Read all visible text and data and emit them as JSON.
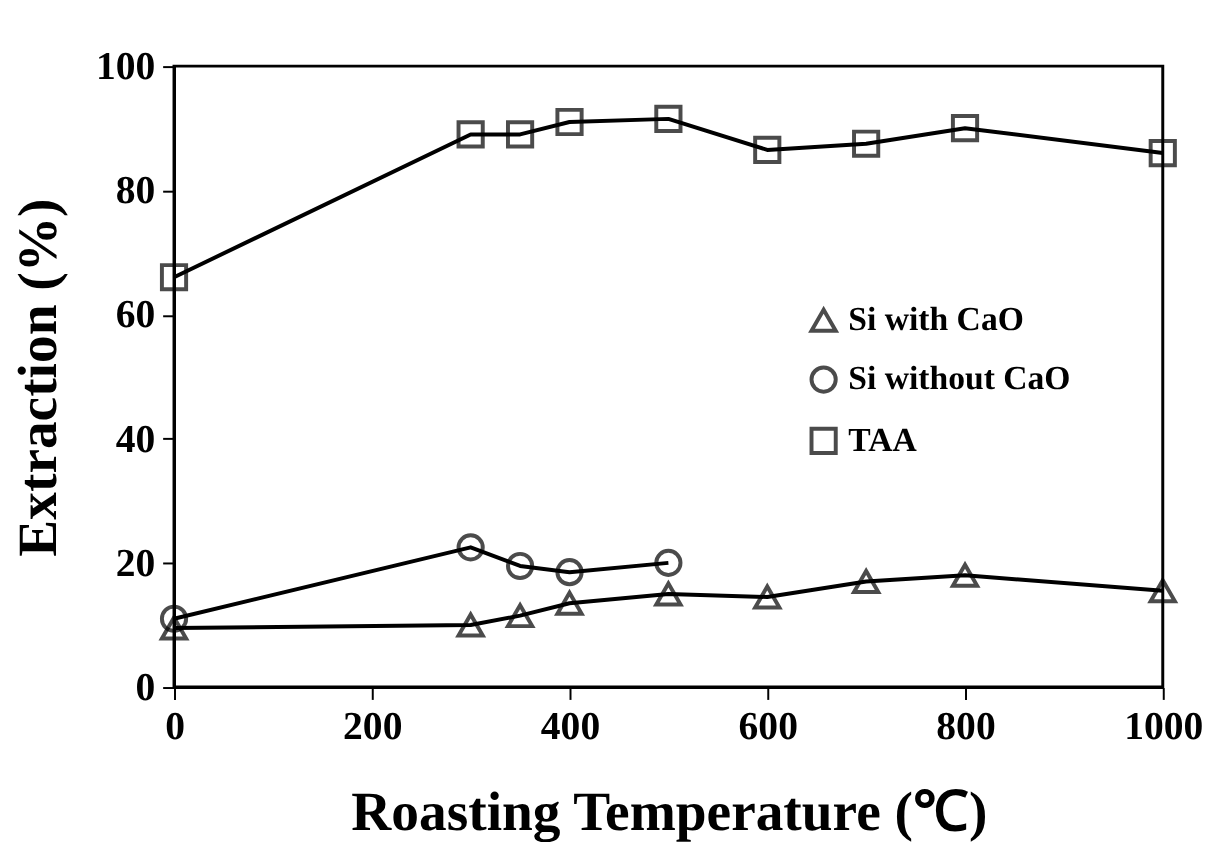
{
  "chart_data": {
    "type": "line",
    "xlabel": "Roasting Temperature (℃)",
    "ylabel": "Extraction (%)",
    "xlim": [
      0,
      1000
    ],
    "xticks": [
      0,
      200,
      400,
      600,
      800,
      1000
    ],
    "ylim": [
      0,
      100
    ],
    "yticks": [
      0,
      20,
      40,
      60,
      80,
      100
    ],
    "grid": false,
    "legend": "right",
    "line_style": "solid",
    "series": [
      {
        "name": "Si with CaO",
        "color": "#000000",
        "marker": "triangle",
        "x": [
          0,
          300,
          350,
          400,
          500,
          600,
          700,
          800,
          1000
        ],
        "values": [
          9.5,
          10,
          11.5,
          13.5,
          15,
          14.5,
          17,
          18,
          15.5
        ]
      },
      {
        "name": "Si without CaO",
        "color": "#000000",
        "marker": "circle",
        "x": [
          0,
          300,
          350,
          400,
          500
        ],
        "values": [
          11,
          22.5,
          19.5,
          18.5,
          20
        ]
      },
      {
        "name": "TAA",
        "color": "#000000",
        "marker": "square",
        "x": [
          0,
          300,
          350,
          400,
          500,
          600,
          700,
          800,
          1000
        ],
        "values": [
          66,
          89,
          89,
          91,
          91.5,
          86.5,
          87.5,
          90,
          86
        ]
      }
    ]
  }
}
